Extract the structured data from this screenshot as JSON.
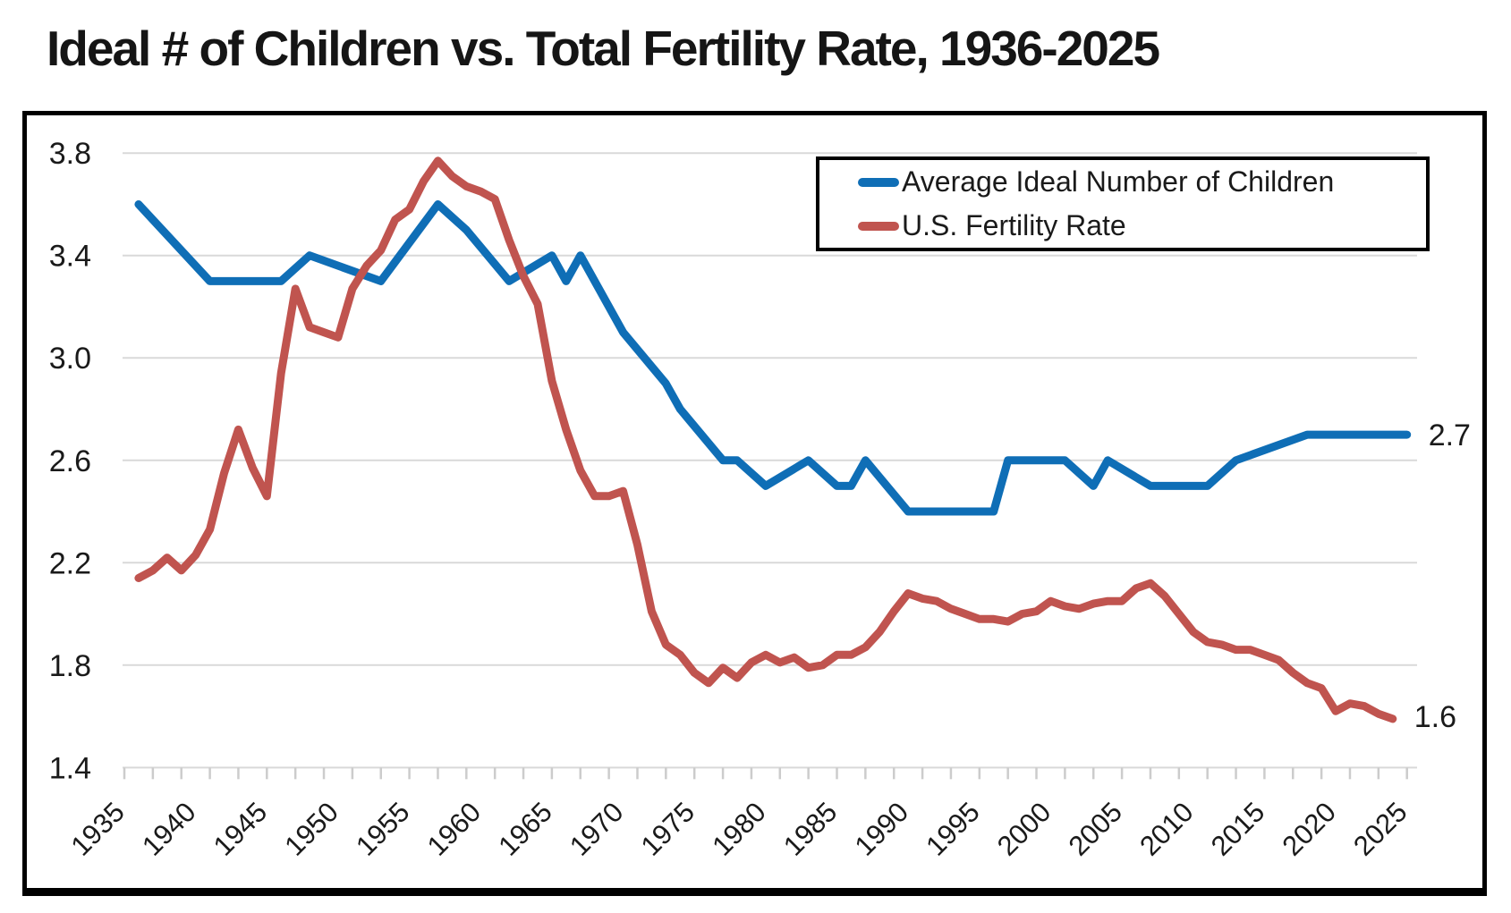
{
  "title": "Ideal # of Children vs. Total Fertility Rate, 1936-2025",
  "colors": {
    "ideal_blue": "#0f6eb6",
    "fertility_red": "#c0544f",
    "grid": "#d9d9d9",
    "tick": "#cccccc",
    "text": "#1a1a1a",
    "border": "#000000",
    "background": "#ffffff"
  },
  "chart_data": {
    "type": "line",
    "title": "Ideal # of Children vs. Total Fertility Rate, 1936-2025",
    "xlabel": "",
    "ylabel": "",
    "x_axis": {
      "range": [
        1935,
        2025
      ],
      "tick_labels": [
        1935,
        1940,
        1945,
        1950,
        1955,
        1960,
        1965,
        1970,
        1975,
        1980,
        1985,
        1990,
        1995,
        2000,
        2005,
        2010,
        2015,
        2020,
        2025
      ],
      "minor_tick_step_years": 2,
      "label_rotation_deg": -45
    },
    "y_axis": {
      "range": [
        1.4,
        3.8
      ],
      "tick_labels": [
        "3.8",
        "3.4",
        "3.0",
        "2.6",
        "2.2",
        "1.8",
        "1.4"
      ],
      "tick_values": [
        3.8,
        3.4,
        3.0,
        2.6,
        2.2,
        1.8,
        1.4
      ],
      "grid": true
    },
    "legend": {
      "position": "top-right",
      "entries": [
        "Average Ideal Number of Children",
        "U.S. Fertility Rate"
      ]
    },
    "series": [
      {
        "name": "Average Ideal Number of Children",
        "color": "#0f6eb6",
        "end_label": "2.7",
        "points": [
          [
            1936,
            3.6
          ],
          [
            1941,
            3.3
          ],
          [
            1946,
            3.3
          ],
          [
            1948,
            3.4
          ],
          [
            1953,
            3.3
          ],
          [
            1957,
            3.6
          ],
          [
            1959,
            3.5
          ],
          [
            1962,
            3.3
          ],
          [
            1965,
            3.4
          ],
          [
            1966,
            3.3
          ],
          [
            1967,
            3.4
          ],
          [
            1970,
            3.1
          ],
          [
            1973,
            2.9
          ],
          [
            1974,
            2.8
          ],
          [
            1977,
            2.6
          ],
          [
            1978,
            2.6
          ],
          [
            1980,
            2.5
          ],
          [
            1983,
            2.6
          ],
          [
            1985,
            2.5
          ],
          [
            1986,
            2.5
          ],
          [
            1987,
            2.6
          ],
          [
            1990,
            2.4
          ],
          [
            1996,
            2.4
          ],
          [
            1997,
            2.6
          ],
          [
            2001,
            2.6
          ],
          [
            2003,
            2.5
          ],
          [
            2004,
            2.6
          ],
          [
            2007,
            2.5
          ],
          [
            2011,
            2.5
          ],
          [
            2013,
            2.6
          ],
          [
            2018,
            2.7
          ],
          [
            2025,
            2.7
          ]
        ]
      },
      {
        "name": "U.S. Fertility Rate",
        "color": "#c0544f",
        "end_label": "1.6",
        "points": [
          [
            1936,
            2.14
          ],
          [
            1937,
            2.17
          ],
          [
            1938,
            2.22
          ],
          [
            1939,
            2.17
          ],
          [
            1940,
            2.23
          ],
          [
            1941,
            2.33
          ],
          [
            1942,
            2.55
          ],
          [
            1943,
            2.72
          ],
          [
            1944,
            2.57
          ],
          [
            1945,
            2.46
          ],
          [
            1946,
            2.94
          ],
          [
            1947,
            3.27
          ],
          [
            1948,
            3.12
          ],
          [
            1949,
            3.1
          ],
          [
            1950,
            3.08
          ],
          [
            1951,
            3.27
          ],
          [
            1952,
            3.36
          ],
          [
            1953,
            3.42
          ],
          [
            1954,
            3.54
          ],
          [
            1955,
            3.58
          ],
          [
            1956,
            3.69
          ],
          [
            1957,
            3.77
          ],
          [
            1958,
            3.71
          ],
          [
            1959,
            3.67
          ],
          [
            1960,
            3.65
          ],
          [
            1961,
            3.62
          ],
          [
            1962,
            3.46
          ],
          [
            1963,
            3.32
          ],
          [
            1964,
            3.21
          ],
          [
            1965,
            2.91
          ],
          [
            1966,
            2.72
          ],
          [
            1967,
            2.56
          ],
          [
            1968,
            2.46
          ],
          [
            1969,
            2.46
          ],
          [
            1970,
            2.48
          ],
          [
            1971,
            2.27
          ],
          [
            1972,
            2.01
          ],
          [
            1973,
            1.88
          ],
          [
            1974,
            1.84
          ],
          [
            1975,
            1.77
          ],
          [
            1976,
            1.73
          ],
          [
            1977,
            1.79
          ],
          [
            1978,
            1.75
          ],
          [
            1979,
            1.81
          ],
          [
            1980,
            1.84
          ],
          [
            1981,
            1.81
          ],
          [
            1982,
            1.83
          ],
          [
            1983,
            1.79
          ],
          [
            1984,
            1.8
          ],
          [
            1985,
            1.84
          ],
          [
            1986,
            1.84
          ],
          [
            1987,
            1.87
          ],
          [
            1988,
            1.93
          ],
          [
            1989,
            2.01
          ],
          [
            1990,
            2.08
          ],
          [
            1991,
            2.06
          ],
          [
            1992,
            2.05
          ],
          [
            1993,
            2.02
          ],
          [
            1994,
            2.0
          ],
          [
            1995,
            1.98
          ],
          [
            1996,
            1.98
          ],
          [
            1997,
            1.97
          ],
          [
            1998,
            2.0
          ],
          [
            1999,
            2.01
          ],
          [
            2000,
            2.05
          ],
          [
            2001,
            2.03
          ],
          [
            2002,
            2.02
          ],
          [
            2003,
            2.04
          ],
          [
            2004,
            2.05
          ],
          [
            2005,
            2.05
          ],
          [
            2006,
            2.1
          ],
          [
            2007,
            2.12
          ],
          [
            2008,
            2.07
          ],
          [
            2009,
            2.0
          ],
          [
            2010,
            1.93
          ],
          [
            2011,
            1.89
          ],
          [
            2012,
            1.88
          ],
          [
            2013,
            1.86
          ],
          [
            2014,
            1.86
          ],
          [
            2015,
            1.84
          ],
          [
            2016,
            1.82
          ],
          [
            2017,
            1.77
          ],
          [
            2018,
            1.73
          ],
          [
            2019,
            1.71
          ],
          [
            2020,
            1.62
          ],
          [
            2021,
            1.65
          ],
          [
            2022,
            1.64
          ],
          [
            2023,
            1.61
          ],
          [
            2024,
            1.59
          ]
        ]
      }
    ]
  }
}
